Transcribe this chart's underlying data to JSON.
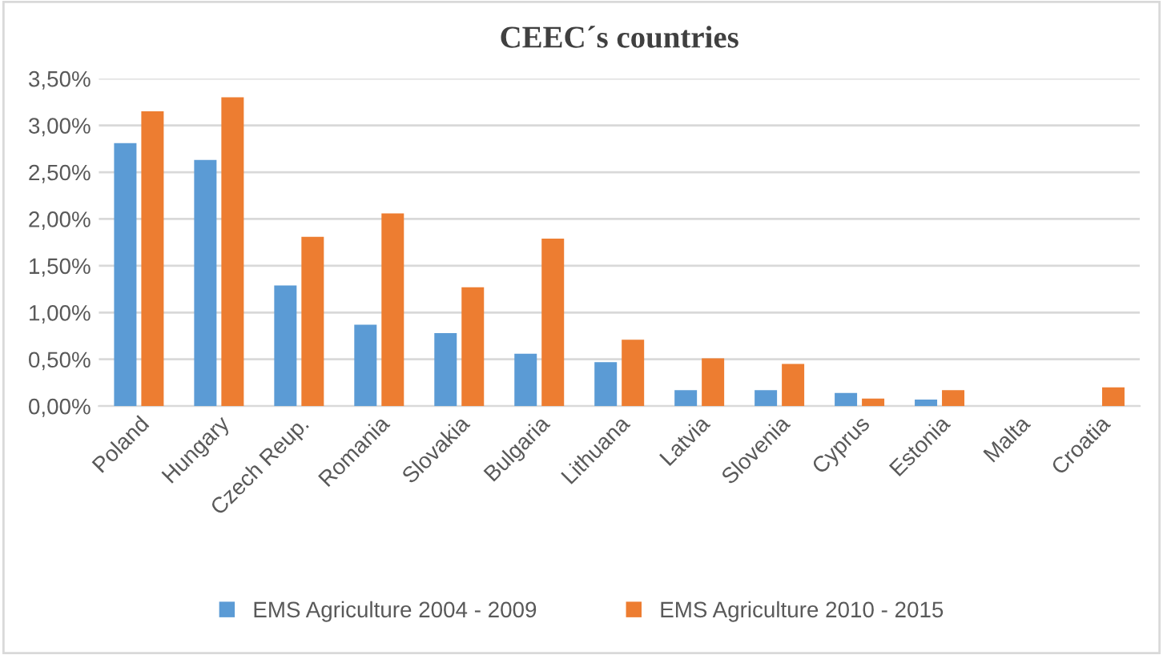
{
  "chart_data": {
    "type": "bar",
    "title": "CEEC´s countries",
    "categories": [
      "Poland",
      "Hungary",
      "Czech Reup.",
      "Romania",
      "Slovakia",
      "Bulgaria",
      "Lithuana",
      "Latvia",
      "Slovenia",
      "Cyprus",
      "Estonia",
      "Malta",
      "Croatia"
    ],
    "series": [
      {
        "name": "EMS Agriculture 2004 - 2009",
        "color": "#5b9bd5",
        "values": [
          2.81,
          2.63,
          1.29,
          0.87,
          0.78,
          0.56,
          0.47,
          0.17,
          0.17,
          0.14,
          0.07,
          0,
          0
        ]
      },
      {
        "name": "EMS Agriculture 2010 - 2015",
        "color": "#ed7d31",
        "values": [
          3.15,
          3.3,
          1.81,
          2.06,
          1.27,
          1.79,
          0.71,
          0.51,
          0.45,
          0.08,
          0.17,
          0,
          0.2
        ]
      }
    ],
    "ylim": [
      0,
      3.5
    ],
    "yticks": [
      {
        "value": 0,
        "label": "0,00%"
      },
      {
        "value": 0.5,
        "label": "0,50%"
      },
      {
        "value": 1,
        "label": "1,00%"
      },
      {
        "value": 1.5,
        "label": "1,50%"
      },
      {
        "value": 2,
        "label": "2,00%"
      },
      {
        "value": 2.5,
        "label": "2,50%"
      },
      {
        "value": 3,
        "label": "3,00%"
      },
      {
        "value": 3.5,
        "label": "3,50%"
      }
    ],
    "grid": "y",
    "legend": "bottom"
  }
}
